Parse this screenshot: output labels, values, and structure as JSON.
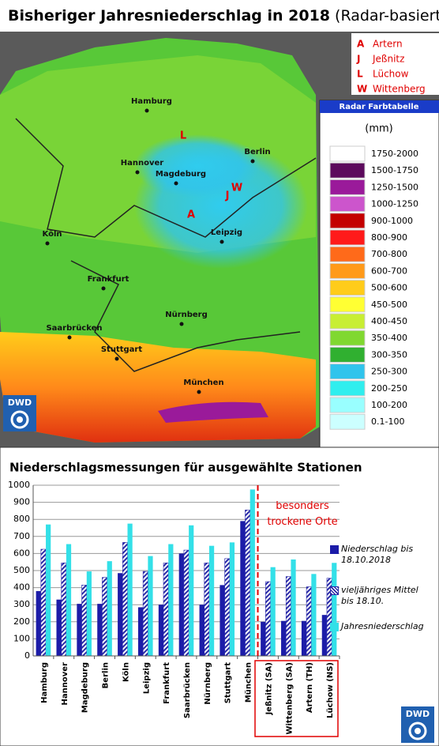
{
  "header": {
    "title": "Bisheriger Jahresniederschlag in 2018",
    "subtitle": "(Radar-basiert)"
  },
  "station_key": [
    {
      "letter": "A",
      "name": "Artern"
    },
    {
      "letter": "J",
      "name": "Jeßnitz"
    },
    {
      "letter": "L",
      "name": "Lüchow"
    },
    {
      "letter": "W",
      "name": "Wittenberg"
    }
  ],
  "map": {
    "cities": [
      "Hamburg",
      "Berlin",
      "Hannover",
      "Magdeburg",
      "Köln",
      "Leipzig",
      "Frankfurt",
      "Saarbrücken",
      "Nürnberg",
      "Stuttgart",
      "München"
    ],
    "markers": [
      "L",
      "J",
      "W",
      "A"
    ]
  },
  "color_table": {
    "title": "Radar Farbtabelle",
    "unit": "(mm)",
    "rows": [
      {
        "label": "1750-2000",
        "color": "#ffffff"
      },
      {
        "label": "1500-1750",
        "color": "#5c0a5c"
      },
      {
        "label": "1250-1500",
        "color": "#9a1a9a"
      },
      {
        "label": "1000-1250",
        "color": "#cc55cc"
      },
      {
        "label": "900-1000",
        "color": "#c40000"
      },
      {
        "label": "800-900",
        "color": "#ff1a1a"
      },
      {
        "label": "700-800",
        "color": "#ff6a1a"
      },
      {
        "label": "600-700",
        "color": "#ff9a1a"
      },
      {
        "label": "500-600",
        "color": "#ffcc1a"
      },
      {
        "label": "450-500",
        "color": "#ffff33"
      },
      {
        "label": "400-450",
        "color": "#c8ee33"
      },
      {
        "label": "350-400",
        "color": "#80d830"
      },
      {
        "label": "300-350",
        "color": "#30b030"
      },
      {
        "label": "250-300",
        "color": "#30c4ec"
      },
      {
        "label": "200-250",
        "color": "#30eeee"
      },
      {
        "label": "100-200",
        "color": "#99ffff"
      },
      {
        "label": "0.1-100",
        "color": "#ccffff"
      }
    ]
  },
  "logo": "DWD",
  "chart_data": {
    "type": "bar",
    "title": "Niederschlagsmessungen für ausgewählte Stationen",
    "annotation": "besonders trockene Orte",
    "categories": [
      "Hamburg",
      "Hannover",
      "Magdeburg",
      "Berlin",
      "Köln",
      "Leipzig",
      "Frankfurt",
      "Saarbrücken",
      "Nürnberg",
      "Stuttgart",
      "München",
      "Jeßnitz (SA)",
      "Wittenberg (SA)",
      "Artern (TH)",
      "Lüchow (NS)"
    ],
    "series": [
      {
        "name": "Niederschlag bis 18.10.2018",
        "color": "#1c1ca8",
        "values": [
          380,
          330,
          305,
          305,
          485,
          285,
          300,
          600,
          300,
          415,
          790,
          200,
          205,
          205,
          240
        ]
      },
      {
        "name": "vieljähriges Mittel bis 18.10.",
        "color": "#2a2aa8",
        "pattern": "hatch",
        "values": [
          625,
          545,
          415,
          460,
          665,
          495,
          545,
          620,
          545,
          570,
          855,
          435,
          465,
          405,
          455
        ]
      },
      {
        "name": "Jahresniederschlag",
        "color": "#33e0e8",
        "values": [
          770,
          655,
          495,
          555,
          775,
          585,
          655,
          765,
          645,
          665,
          975,
          520,
          565,
          480,
          545
        ]
      }
    ],
    "ylim": [
      0,
      1000
    ],
    "yticks": [
      0,
      100,
      200,
      300,
      400,
      500,
      600,
      700,
      800,
      900,
      1000
    ],
    "grid": true
  }
}
